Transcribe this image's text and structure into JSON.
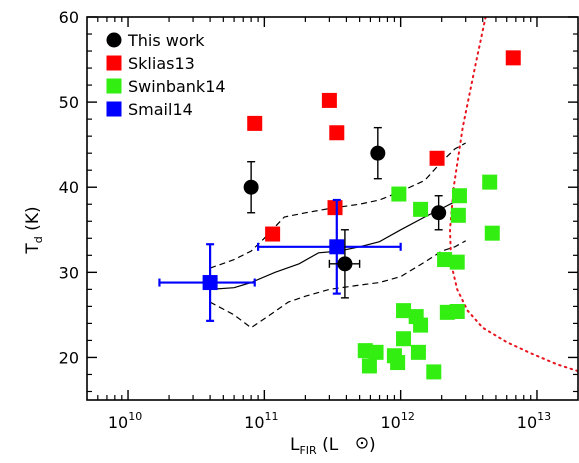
{
  "chart_data": {
    "type": "scatter",
    "xscale": "log",
    "xlim": [
      5000000000.0,
      20000000000000.0
    ],
    "ylim": [
      15,
      60
    ],
    "grid": false,
    "legend_position": "top-left",
    "xlabel": {
      "main": "L",
      "sub": "FIR",
      "unit_open": " (L",
      "unit_close": ")"
    },
    "ylabel": {
      "main": "T",
      "sub": "d",
      "unit": " (K)"
    },
    "x_ticks": [
      {
        "value": 10000000000.0,
        "base": "10",
        "exp": "10"
      },
      {
        "value": 100000000000.0,
        "base": "10",
        "exp": "11"
      },
      {
        "value": 1000000000000.0,
        "base": "10",
        "exp": "12"
      },
      {
        "value": 10000000000000.0,
        "base": "10",
        "exp": "13"
      }
    ],
    "y_ticks": [
      20,
      30,
      40,
      50,
      60
    ],
    "series": [
      {
        "name": "This work",
        "marker": "circle",
        "color": "#000000",
        "points": [
          {
            "x": 80000000000.0,
            "y": 40.0,
            "yerr": [
              3.0,
              3.0
            ]
          },
          {
            "x": 680000000000.0,
            "y": 44.0,
            "yerr": [
              3.0,
              3.0
            ]
          },
          {
            "x": 390000000000.0,
            "y": 31.0,
            "yerr": [
              4.0,
              4.0
            ],
            "xerr": [
              300000000000.0,
              500000000000.0
            ]
          },
          {
            "x": 1900000000000.0,
            "y": 37.0,
            "yerr": [
              2.0,
              2.0
            ]
          }
        ]
      },
      {
        "name": "Sklias13",
        "marker": "square",
        "color": "#ff0000",
        "points": [
          {
            "x": 85000000000.0,
            "y": 47.5
          },
          {
            "x": 115000000000.0,
            "y": 34.5
          },
          {
            "x": 300000000000.0,
            "y": 50.2
          },
          {
            "x": 340000000000.0,
            "y": 46.4
          },
          {
            "x": 330000000000.0,
            "y": 37.6
          },
          {
            "x": 1850000000000.0,
            "y": 43.4
          },
          {
            "x": 6700000000000.0,
            "y": 55.2
          }
        ]
      },
      {
        "name": "Swinbank14",
        "marker": "square",
        "color": "#33ee11",
        "points": [
          {
            "x": 970000000000.0,
            "y": 39.2
          },
          {
            "x": 1400000000000.0,
            "y": 37.4
          },
          {
            "x": 2700000000000.0,
            "y": 39.0
          },
          {
            "x": 2650000000000.0,
            "y": 36.7
          },
          {
            "x": 4500000000000.0,
            "y": 40.6
          },
          {
            "x": 4700000000000.0,
            "y": 34.6
          },
          {
            "x": 2100000000000.0,
            "y": 31.5
          },
          {
            "x": 2600000000000.0,
            "y": 31.2
          },
          {
            "x": 2200000000000.0,
            "y": 25.3
          },
          {
            "x": 2600000000000.0,
            "y": 25.4
          },
          {
            "x": 1050000000000.0,
            "y": 25.5
          },
          {
            "x": 1300000000000.0,
            "y": 24.8
          },
          {
            "x": 1400000000000.0,
            "y": 23.8
          },
          {
            "x": 1050000000000.0,
            "y": 22.2
          },
          {
            "x": 550000000000.0,
            "y": 20.8
          },
          {
            "x": 660000000000.0,
            "y": 20.6
          },
          {
            "x": 590000000000.0,
            "y": 19.0
          },
          {
            "x": 900000000000.0,
            "y": 20.2
          },
          {
            "x": 950000000000.0,
            "y": 19.4
          },
          {
            "x": 1350000000000.0,
            "y": 20.6
          },
          {
            "x": 1750000000000.0,
            "y": 18.3
          }
        ]
      },
      {
        "name": "Smail14",
        "marker": "square",
        "color": "#0000ff",
        "points": [
          {
            "x": 40000000000.0,
            "y": 28.8,
            "yerr": [
              4.5,
              4.5
            ],
            "xerr": [
              17000000000.0,
              85000000000.0
            ]
          },
          {
            "x": 340000000000.0,
            "y": 33.0,
            "yerr": [
              5.5,
              5.5
            ],
            "xerr": [
              90000000000.0,
              1000000000000.0
            ]
          }
        ]
      }
    ],
    "lines": [
      {
        "style": "solid",
        "color": "#000000",
        "points": [
          [
            40000000000.0,
            28.0
          ],
          [
            60000000000.0,
            28.2
          ],
          [
            80000000000.0,
            28.8
          ],
          [
            120000000000.0,
            30.0
          ],
          [
            180000000000.0,
            31.0
          ],
          [
            250000000000.0,
            32.3
          ],
          [
            350000000000.0,
            32.5
          ],
          [
            500000000000.0,
            33.0
          ],
          [
            700000000000.0,
            33.6
          ],
          [
            1000000000000.0,
            35.0
          ],
          [
            1500000000000.0,
            36.5
          ],
          [
            2000000000000.0,
            37.5
          ],
          [
            2500000000000.0,
            38.3
          ],
          [
            3000000000000.0,
            38.8
          ]
        ]
      },
      {
        "style": "dashed",
        "color": "#000000",
        "points": [
          [
            40000000000.0,
            30.5
          ],
          [
            60000000000.0,
            31.5
          ],
          [
            80000000000.0,
            32.5
          ],
          [
            100000000000.0,
            34.0
          ],
          [
            140000000000.0,
            36.5
          ],
          [
            200000000000.0,
            37.0
          ],
          [
            300000000000.0,
            37.5
          ],
          [
            500000000000.0,
            38.0
          ],
          [
            700000000000.0,
            38.5
          ],
          [
            1000000000000.0,
            39.5
          ],
          [
            1500000000000.0,
            40.8
          ],
          [
            2000000000000.0,
            43.0
          ],
          [
            2500000000000.0,
            44.5
          ],
          [
            3000000000000.0,
            45.2
          ]
        ]
      },
      {
        "style": "dashed",
        "color": "#000000",
        "points": [
          [
            40000000000.0,
            26.5
          ],
          [
            60000000000.0,
            25.0
          ],
          [
            80000000000.0,
            23.5
          ],
          [
            110000000000.0,
            25.0
          ],
          [
            150000000000.0,
            26.5
          ],
          [
            200000000000.0,
            27.2
          ],
          [
            300000000000.0,
            28.0
          ],
          [
            500000000000.0,
            28.5
          ],
          [
            700000000000.0,
            28.8
          ],
          [
            1000000000000.0,
            29.5
          ],
          [
            1500000000000.0,
            31.2
          ],
          [
            2000000000000.0,
            32.5
          ],
          [
            2500000000000.0,
            33.0
          ],
          [
            3000000000000.0,
            33.7
          ]
        ]
      },
      {
        "style": "dotted",
        "color": "#e8141e",
        "points": [
          [
            4200000000000.0,
            60.0
          ],
          [
            3500000000000.0,
            54.0
          ],
          [
            2850000000000.0,
            47.0
          ],
          [
            2450000000000.0,
            40.0
          ],
          [
            2300000000000.0,
            35.0
          ],
          [
            2350000000000.0,
            31.0
          ],
          [
            2600000000000.0,
            28.0
          ],
          [
            3100000000000.0,
            25.5
          ],
          [
            4000000000000.0,
            23.5
          ],
          [
            6000000000000.0,
            21.8
          ],
          [
            9000000000000.0,
            20.5
          ],
          [
            14000000000000.0,
            19.2
          ],
          [
            20000000000000.0,
            18.4
          ]
        ]
      }
    ]
  }
}
